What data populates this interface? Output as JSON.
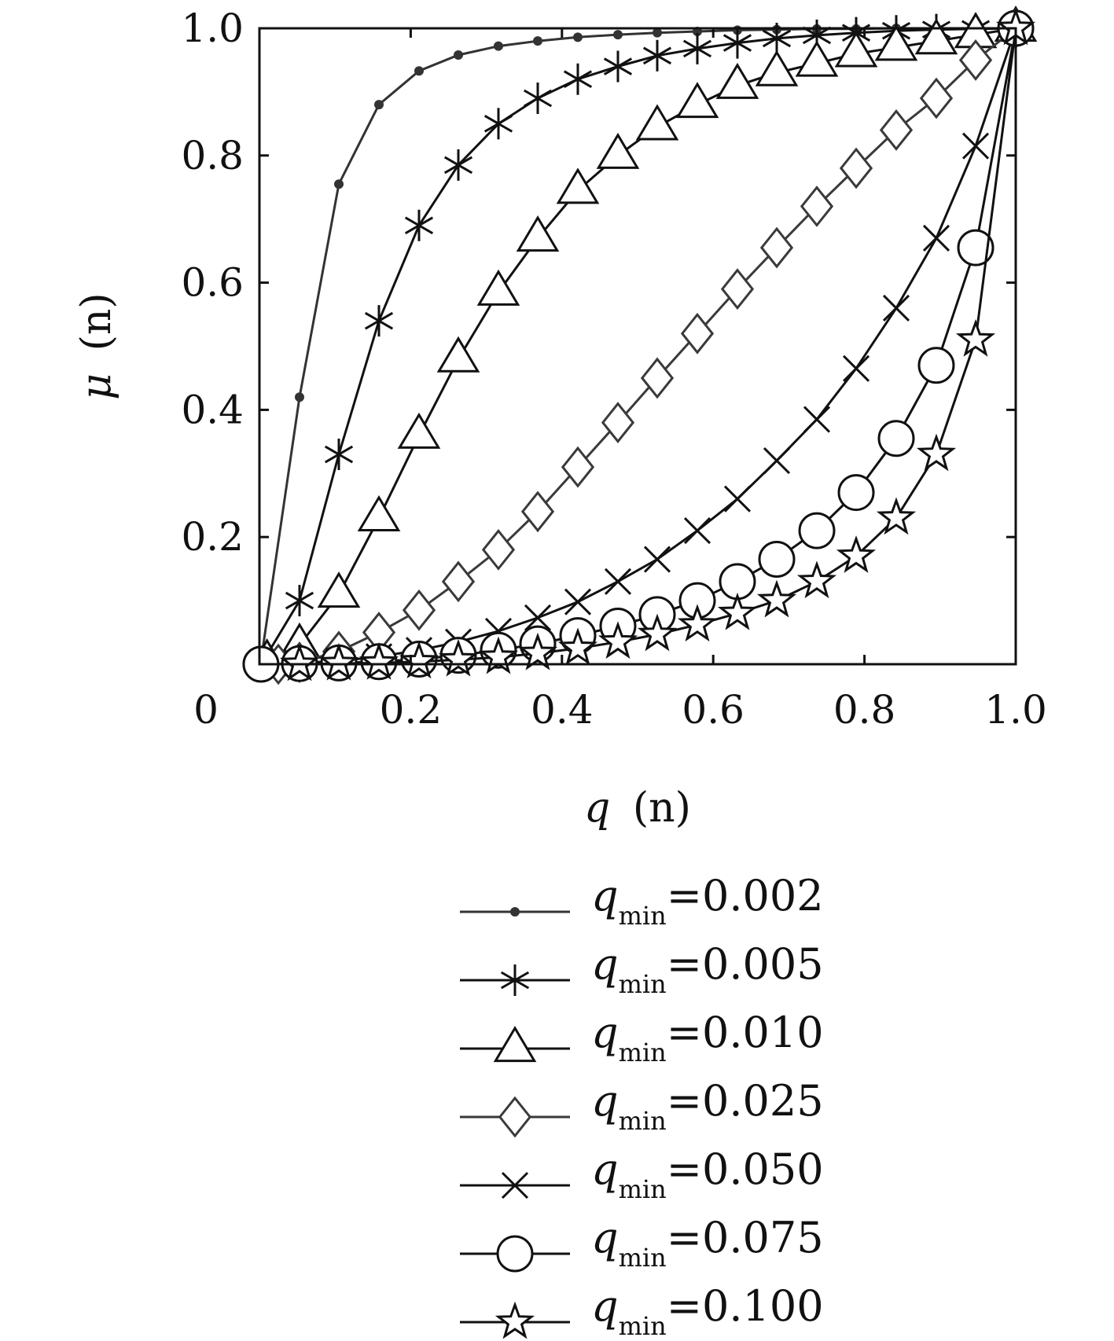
{
  "chart_data": {
    "type": "line",
    "xlabel_var": "q",
    "xlabel_arg": "(n)",
    "ylabel_var": "μ",
    "ylabel_arg": "(n)",
    "xlim": [
      0,
      1
    ],
    "ylim": [
      0,
      1
    ],
    "x_ticks": [
      {
        "value": 0,
        "label": "0"
      },
      {
        "value": 0.2,
        "label": "0.2"
      },
      {
        "value": 0.4,
        "label": "0.4"
      },
      {
        "value": 0.6,
        "label": "0.6"
      },
      {
        "value": 0.8,
        "label": "0.8"
      },
      {
        "value": 1.0,
        "label": "1.0"
      }
    ],
    "y_ticks": [
      {
        "value": 0.2,
        "label": "0.2"
      },
      {
        "value": 0.4,
        "label": "0.4"
      },
      {
        "value": 0.6,
        "label": "0.6"
      },
      {
        "value": 0.8,
        "label": "0.8"
      },
      {
        "value": 1.0,
        "label": "1.0"
      }
    ],
    "grid": false,
    "legend_placement": "below",
    "series": [
      {
        "name_var": "q",
        "name_sub": "min",
        "name_val": "=0.002",
        "marker": "dot",
        "color": "#333333",
        "points": [
          [
            0.002,
            0.005
          ],
          [
            0.053,
            0.42
          ],
          [
            0.105,
            0.755
          ],
          [
            0.158,
            0.88
          ],
          [
            0.211,
            0.933
          ],
          [
            0.263,
            0.958
          ],
          [
            0.316,
            0.972
          ],
          [
            0.368,
            0.98
          ],
          [
            0.421,
            0.986
          ],
          [
            0.474,
            0.99
          ],
          [
            0.526,
            0.993
          ],
          [
            0.579,
            0.995
          ],
          [
            0.632,
            0.997
          ],
          [
            0.684,
            0.998
          ],
          [
            0.737,
            0.999
          ],
          [
            0.789,
            0.999
          ],
          [
            0.842,
            1.0
          ],
          [
            0.895,
            1.0
          ],
          [
            0.947,
            1.0
          ],
          [
            1.0,
            1.0
          ]
        ]
      },
      {
        "name_var": "q",
        "name_sub": "min",
        "name_val": "=0.005",
        "marker": "asterisk",
        "color": "#111111",
        "points": [
          [
            0.005,
            0.005
          ],
          [
            0.053,
            0.1
          ],
          [
            0.105,
            0.33
          ],
          [
            0.158,
            0.54
          ],
          [
            0.211,
            0.69
          ],
          [
            0.263,
            0.785
          ],
          [
            0.316,
            0.85
          ],
          [
            0.368,
            0.89
          ],
          [
            0.421,
            0.92
          ],
          [
            0.474,
            0.94
          ],
          [
            0.526,
            0.957
          ],
          [
            0.579,
            0.968
          ],
          [
            0.632,
            0.977
          ],
          [
            0.684,
            0.984
          ],
          [
            0.737,
            0.989
          ],
          [
            0.789,
            0.993
          ],
          [
            0.842,
            0.996
          ],
          [
            0.895,
            0.998
          ],
          [
            0.947,
            0.999
          ],
          [
            1.0,
            1.0
          ]
        ]
      },
      {
        "name_var": "q",
        "name_sub": "min",
        "name_val": "=0.010",
        "marker": "triangle",
        "color": "#111111",
        "points": [
          [
            0.01,
            0.005
          ],
          [
            0.053,
            0.03
          ],
          [
            0.105,
            0.11
          ],
          [
            0.158,
            0.23
          ],
          [
            0.211,
            0.36
          ],
          [
            0.263,
            0.48
          ],
          [
            0.316,
            0.585
          ],
          [
            0.368,
            0.67
          ],
          [
            0.421,
            0.745
          ],
          [
            0.474,
            0.8
          ],
          [
            0.526,
            0.845
          ],
          [
            0.579,
            0.88
          ],
          [
            0.632,
            0.91
          ],
          [
            0.684,
            0.93
          ],
          [
            0.737,
            0.945
          ],
          [
            0.789,
            0.96
          ],
          [
            0.842,
            0.97
          ],
          [
            0.895,
            0.98
          ],
          [
            0.947,
            0.99
          ],
          [
            1.0,
            1.0
          ]
        ]
      },
      {
        "name_var": "q",
        "name_sub": "min",
        "name_val": "=0.025",
        "marker": "diamond",
        "color": "#3a3a3a",
        "points": [
          [
            0.025,
            0.0
          ],
          [
            0.053,
            0.003
          ],
          [
            0.105,
            0.02
          ],
          [
            0.158,
            0.05
          ],
          [
            0.211,
            0.085
          ],
          [
            0.263,
            0.13
          ],
          [
            0.316,
            0.18
          ],
          [
            0.368,
            0.24
          ],
          [
            0.421,
            0.31
          ],
          [
            0.474,
            0.38
          ],
          [
            0.526,
            0.45
          ],
          [
            0.579,
            0.52
          ],
          [
            0.632,
            0.59
          ],
          [
            0.684,
            0.655
          ],
          [
            0.737,
            0.72
          ],
          [
            0.789,
            0.78
          ],
          [
            0.842,
            0.84
          ],
          [
            0.895,
            0.89
          ],
          [
            0.947,
            0.95
          ],
          [
            1.0,
            1.0
          ]
        ]
      },
      {
        "name_var": "q",
        "name_sub": "min",
        "name_val": "=0.050",
        "marker": "x",
        "color": "#111111",
        "points": [
          [
            0.05,
            0.002
          ],
          [
            0.105,
            0.005
          ],
          [
            0.158,
            0.012
          ],
          [
            0.211,
            0.022
          ],
          [
            0.263,
            0.035
          ],
          [
            0.316,
            0.052
          ],
          [
            0.368,
            0.073
          ],
          [
            0.421,
            0.098
          ],
          [
            0.474,
            0.13
          ],
          [
            0.526,
            0.165
          ],
          [
            0.579,
            0.21
          ],
          [
            0.632,
            0.26
          ],
          [
            0.684,
            0.32
          ],
          [
            0.737,
            0.385
          ],
          [
            0.789,
            0.465
          ],
          [
            0.842,
            0.56
          ],
          [
            0.895,
            0.67
          ],
          [
            0.947,
            0.815
          ],
          [
            1.0,
            1.0
          ]
        ]
      },
      {
        "name_var": "q",
        "name_sub": "min",
        "name_val": "=0.075",
        "marker": "circle",
        "color": "#111111",
        "points": [
          [
            0.002,
            0.0
          ],
          [
            0.053,
            0.001
          ],
          [
            0.105,
            0.002
          ],
          [
            0.158,
            0.004
          ],
          [
            0.211,
            0.008
          ],
          [
            0.263,
            0.014
          ],
          [
            0.316,
            0.022
          ],
          [
            0.368,
            0.032
          ],
          [
            0.421,
            0.045
          ],
          [
            0.474,
            0.06
          ],
          [
            0.526,
            0.078
          ],
          [
            0.579,
            0.1
          ],
          [
            0.632,
            0.13
          ],
          [
            0.684,
            0.165
          ],
          [
            0.737,
            0.21
          ],
          [
            0.789,
            0.27
          ],
          [
            0.842,
            0.355
          ],
          [
            0.895,
            0.47
          ],
          [
            0.947,
            0.655
          ],
          [
            1.0,
            1.0
          ]
        ]
      },
      {
        "name_var": "q",
        "name_sub": "min",
        "name_val": "=0.100",
        "marker": "star",
        "color": "#111111",
        "points": [
          [
            0.053,
            0.0
          ],
          [
            0.105,
            0.001
          ],
          [
            0.158,
            0.002
          ],
          [
            0.211,
            0.004
          ],
          [
            0.263,
            0.007
          ],
          [
            0.316,
            0.011
          ],
          [
            0.368,
            0.017
          ],
          [
            0.421,
            0.025
          ],
          [
            0.474,
            0.035
          ],
          [
            0.526,
            0.047
          ],
          [
            0.579,
            0.062
          ],
          [
            0.632,
            0.08
          ],
          [
            0.684,
            0.1
          ],
          [
            0.737,
            0.13
          ],
          [
            0.789,
            0.17
          ],
          [
            0.842,
            0.23
          ],
          [
            0.895,
            0.33
          ],
          [
            0.947,
            0.51
          ],
          [
            1.0,
            1.0
          ]
        ]
      }
    ]
  }
}
